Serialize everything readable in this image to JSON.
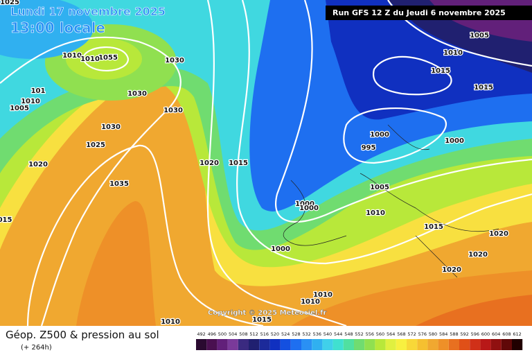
{
  "header": {
    "date": "Lundi 17 novembre 2025",
    "time": "13:00 locale",
    "run": "Run GFS 12 Z du Jeudi 6 novembre 2025"
  },
  "isobar_labels": [
    "1025",
    "1055",
    "1010",
    "1010",
    "1030",
    "101",
    "1010",
    "1005",
    "1030",
    "1030",
    "1030",
    "1025",
    "1020",
    "1035",
    "1020",
    "1015",
    "015",
    "1005",
    "1010",
    "1015",
    "1015",
    "1000",
    "995",
    "1000",
    "1005",
    "1000",
    "1000",
    "1010",
    "1015",
    "1020",
    "1020",
    "1020",
    "1000",
    "1010",
    "1010",
    "1015",
    "1010"
  ],
  "copyright": "Copyright © 2025 Meteociel.fr",
  "footer": {
    "title": "Géop. Z500 & pression au sol",
    "lead": "(+ 264h)"
  },
  "scale": {
    "labels": [
      492,
      496,
      500,
      504,
      508,
      512,
      516,
      520,
      524,
      528,
      532,
      536,
      540,
      544,
      548,
      552,
      556,
      560,
      564,
      568,
      572,
      576,
      580,
      584,
      588,
      592,
      596,
      600,
      604,
      608,
      612
    ],
    "colors": [
      "#2a0a30",
      "#4a1050",
      "#62207a",
      "#7a3a9a",
      "#3a2a80",
      "#202070",
      "#1c2a9a",
      "#1030c0",
      "#1450e0",
      "#1e6ff0",
      "#2a90f4",
      "#30b0f0",
      "#40d0ea",
      "#40e0d0",
      "#50e0a0",
      "#70dc70",
      "#90e050",
      "#b8e83a",
      "#e0f040",
      "#f8f040",
      "#f8d838",
      "#f5c030",
      "#f0a830",
      "#ee9028",
      "#e87020",
      "#e05018",
      "#d03018",
      "#b81818",
      "#901010",
      "#600808",
      "#200000"
    ]
  }
}
